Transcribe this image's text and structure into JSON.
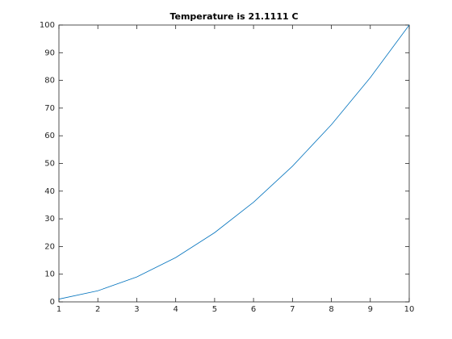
{
  "chart_data": {
    "type": "line",
    "title": "Temperature is 21.1111 C",
    "x": [
      1,
      2,
      3,
      4,
      5,
      6,
      7,
      8,
      9,
      10
    ],
    "values": [
      1,
      4,
      9,
      16,
      25,
      36,
      49,
      64,
      81,
      100
    ],
    "color": "#0072bd",
    "xlim": [
      1,
      10
    ],
    "ylim": [
      0,
      100
    ],
    "xticks": [
      1,
      2,
      3,
      4,
      5,
      6,
      7,
      8,
      9,
      10
    ],
    "yticks": [
      0,
      10,
      20,
      30,
      40,
      50,
      60,
      70,
      80,
      90,
      100
    ],
    "grid": false
  }
}
